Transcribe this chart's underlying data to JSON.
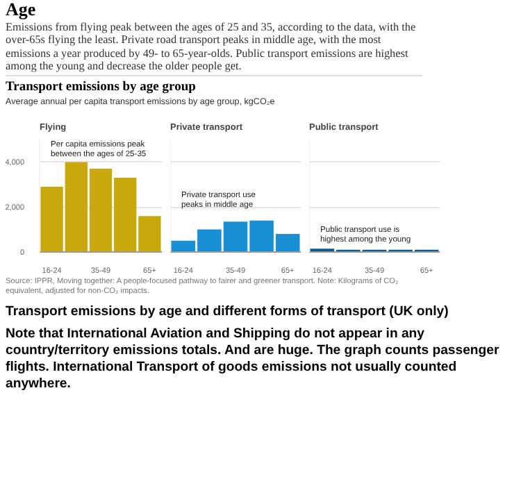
{
  "chart_data": [
    {
      "type": "other",
      "title": "Age",
      "subtitle": "Emissions from flying peak between the ages of 25 and 35, according to the data, with the over-65s flying the least. Private road transport peaks in middle age, with the most emissions a year produced by 49- to 65-year-olds. Public transport emissions are highest among the young and decrease the older people get.",
      "annotations": [
        "Transport emissions by age group",
        "Average annual per capita transport emissions by age group, kgCO₂e"
      ]
    },
    {
      "type": "bar",
      "title": "Flying",
      "categories": [
        "16-24",
        null,
        "35-49",
        null,
        "65+"
      ],
      "values": [
        2900,
        4000,
        3700,
        3300,
        1600
      ],
      "color": "#c9a80c",
      "ylim": [
        0,
        5000
      ],
      "yticks": [
        0,
        {
          "value": 2000,
          "label": "2,000"
        },
        {
          "value": 4000,
          "label": "4,000"
        }
      ],
      "grid": "y",
      "annotations": [
        "Per capita emissions peak between the ages of 25-35"
      ]
    },
    {
      "type": "bar",
      "title": "Private transport",
      "categories": [
        "16-24",
        null,
        "35-49",
        null,
        "65+"
      ],
      "values": [
        500,
        1000,
        1350,
        1400,
        800
      ],
      "color": "#1a8fd6",
      "ylim": [
        0,
        5000
      ],
      "yticks": [
        {
          "value": 0,
          "label": null
        },
        {
          "value": 2000,
          "label": null
        },
        {
          "value": 4000,
          "label": null
        }
      ],
      "grid": "y",
      "tick_labels": "x",
      "annotations": [
        "Private transport use peaks in middle age"
      ]
    },
    {
      "type": "bar",
      "title": "Public transport",
      "categories": [
        "16-24",
        null,
        "35-49",
        null,
        "65+"
      ],
      "values": [
        150,
        100,
        100,
        100,
        100
      ],
      "color": "#0f5a8a",
      "ylim": [
        0,
        5000
      ],
      "yticks": [
        {
          "value": 0,
          "label": null
        },
        {
          "value": 2000,
          "label": null
        },
        {
          "value": 4000,
          "label": null
        }
      ],
      "grid": "y",
      "tick_labels": "x",
      "annotations": [
        "Public transport use is highest among the young"
      ]
    },
    {
      "type": "other",
      "annotations": [
        "Source: IPPR, Moving together: A people-focused pathway to fairer and greener transport. Note: Kilograms of CO₂ equivalent, adjusted for non-CO₂ impacts.",
        "Transport emissions by age and different forms of transport (UK only)",
        "Note that International Aviation and Shipping do not appear in any country/territory emissions totals. And are huge. The graph counts passenger flights. International Transport of goods emissions not usually counted anywhere."
      ]
    }
  ]
}
